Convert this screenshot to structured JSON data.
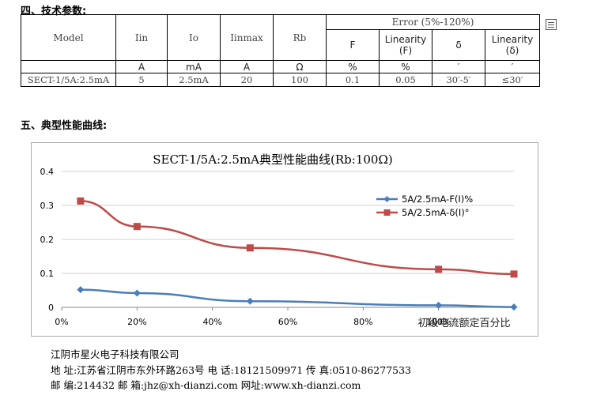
{
  "section4_title": "四、技术参数:",
  "section5_title": "五、典型性能曲线:",
  "spec_table": {
    "model_header": "Model",
    "iin_header": "Iin",
    "io_header": "Io",
    "iinmax_header": "Iinmax",
    "rb_header": "Rb",
    "error_header": "Error (5%-120%)",
    "f_header": "F",
    "linearity_f_line1": "Linearity",
    "linearity_f_line2": "(F)",
    "delta_header": "δ",
    "linearity_d_line1": "Linearity",
    "linearity_d_line2": "(δ)",
    "units": {
      "iin": "A",
      "io": "mA",
      "iinmax": "A",
      "rb": "Ω",
      "f": "%",
      "linearity_f": "%",
      "delta": "′",
      "linearity_d": "′"
    },
    "row": {
      "model": "SECT-1/5A:2.5mA",
      "iin": "5",
      "io": "2.5mA",
      "iinmax": "20",
      "rb": "100",
      "f": "0.1",
      "linearity_f": "0.05",
      "delta": "30′-5′",
      "linearity_d": "≤30′"
    }
  },
  "chart_data": {
    "type": "line",
    "title": "SECT-1/5A:2.5mA典型性能曲线(Rb:100Ω)",
    "xlabel": "初级电流额定百分比",
    "ylabel": "",
    "x_tick_labels": [
      "0%",
      "20%",
      "40%",
      "60%",
      "80%",
      "100%"
    ],
    "y_tick_labels": [
      "0",
      "0.1",
      "0.2",
      "0.3",
      "0.4"
    ],
    "xlim": [
      0,
      1.2
    ],
    "ylim": [
      0,
      0.4
    ],
    "grid": true,
    "legend_position": "top-right",
    "series": [
      {
        "name": "5A/2.5mA-F(I)%",
        "color": "#4a7ebb",
        "marker": "diamond",
        "x": [
          0.05,
          0.2,
          0.5,
          1.0,
          1.2
        ],
        "y": [
          0.052,
          0.042,
          0.018,
          0.006,
          0.001
        ]
      },
      {
        "name": "5A/2.5mA-δ(I)°",
        "color": "#be4b48",
        "marker": "square",
        "x": [
          0.05,
          0.2,
          0.5,
          1.0,
          1.2
        ],
        "y": [
          0.313,
          0.238,
          0.175,
          0.112,
          0.098
        ]
      }
    ]
  },
  "footer": {
    "company": "江阴市星火电子科技有限公司",
    "address_line": "地 址:江苏省江阴市东外环路263号  电 话:18121509971  传 真:0510-86277533",
    "contact_line": "邮 编:214432   邮 箱:jhz@xh-dianzi.com     网址:www.xh-dianzi.com"
  }
}
